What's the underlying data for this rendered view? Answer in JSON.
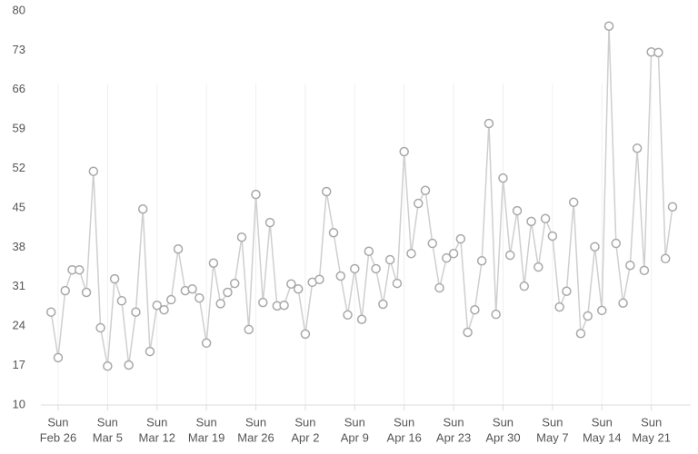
{
  "chart_data": {
    "type": "line",
    "categories": [
      null,
      [
        "Sun",
        "Feb 26"
      ],
      null,
      null,
      null,
      null,
      null,
      null,
      [
        "Sun",
        "Mar 5"
      ],
      null,
      null,
      null,
      null,
      null,
      null,
      [
        "Sun",
        "Mar 12"
      ],
      null,
      null,
      null,
      null,
      null,
      null,
      [
        "Sun",
        "Mar 19"
      ],
      null,
      null,
      null,
      null,
      null,
      null,
      [
        "Sun",
        "Mar 26"
      ],
      null,
      null,
      null,
      null,
      null,
      null,
      [
        "Sun",
        "Apr 2"
      ],
      null,
      null,
      null,
      null,
      null,
      null,
      [
        "Sun",
        "Apr 9"
      ],
      null,
      null,
      null,
      null,
      null,
      null,
      [
        "Sun",
        "Apr 16"
      ],
      null,
      null,
      null,
      null,
      null,
      null,
      [
        "Sun",
        "Apr 23"
      ],
      null,
      null,
      null,
      null,
      null,
      null,
      [
        "Sun",
        "Apr 30"
      ],
      null,
      null,
      null,
      null,
      null,
      null,
      [
        "Sun",
        "May 7"
      ],
      null,
      null,
      null,
      null,
      null,
      null,
      [
        "Sun",
        "May 14"
      ],
      null,
      null,
      null,
      null,
      null,
      null,
      [
        "Sun",
        "May 21"
      ],
      null,
      null,
      null
    ],
    "values": [
      26.5,
      18.4,
      30.3,
      34,
      34,
      30,
      51.5,
      23.7,
      16.9,
      32.4,
      28.5,
      17.1,
      26.5,
      44.8,
      19.5,
      27.7,
      26.9,
      28.7,
      37.7,
      30.3,
      30.6,
      29,
      21,
      35.2,
      28,
      30,
      31.6,
      39.8,
      23.4,
      47.4,
      28.2,
      42.4,
      27.6,
      27.7,
      31.5,
      30.6,
      22.6,
      31.8,
      32.3,
      47.9,
      40.6,
      32.9,
      26,
      34.2,
      25.2,
      37.3,
      34.2,
      27.9,
      35.8,
      31.6,
      55,
      36.9,
      45.8,
      48.1,
      38.7,
      30.8,
      36.1,
      36.9,
      39.5,
      22.9,
      26.9,
      35.6,
      60,
      26.1,
      50.3,
      36.6,
      44.5,
      31.1,
      42.6,
      34.5,
      43.1,
      40,
      27.4,
      30.2,
      46,
      22.7,
      25.8,
      38.1,
      26.8,
      77.3,
      38.7,
      28.1,
      34.8,
      55.6,
      33.9,
      72.7,
      72.6,
      36,
      45.2
    ],
    "color": "#cfcfcf",
    "marker_color": "#a8a8a8",
    "ylim": [
      10,
      80
    ],
    "yticks": [
      10,
      17,
      24,
      31,
      38,
      45,
      52,
      59,
      66,
      73,
      80
    ],
    "grid": true
  }
}
